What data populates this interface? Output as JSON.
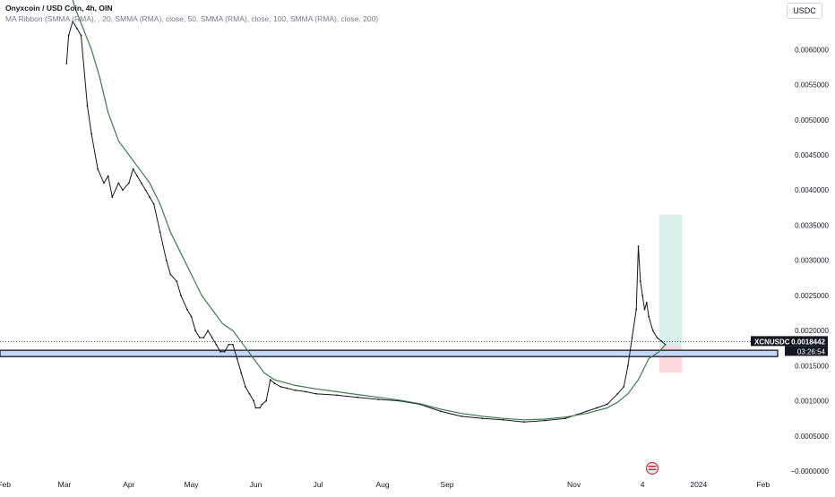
{
  "legend": {
    "title": "Onyxcoin / USD Coin, 4h, ",
    "exchange_suffix": "OIN",
    "ribbon": "MA Ribbon (SMMA (RMA),   , 20, SMMA (RMA), close, 50, SMMA (RMA), close, 100, SMMA (RMA), close, 200)"
  },
  "currency_button": "USDC",
  "symbol_tag": {
    "name": "XCNUSDC",
    "price": "0.0018442",
    "countdown": "03:26:54"
  },
  "colors": {
    "candle": "#131722",
    "ma_line": "#3d7a4e",
    "zone_fill": "#c5d7fc",
    "profit_box": "#d8efea",
    "loss_box": "#fbd9dc",
    "price_tag": "#131722"
  },
  "chart_data": {
    "type": "line",
    "title": "Onyxcoin / USD Coin, 4h",
    "y_ticks": [
      "0.0060000",
      "0.0055000",
      "0.0050000",
      "0.0045000",
      "0.0040000",
      "0.0035000",
      "0.0030000",
      "0.0025000",
      "0.0020000",
      "0.0015000",
      "0.0010000",
      "0.0005000",
      "−0.0000000"
    ],
    "y_tick_values": [
      0.006,
      0.0055,
      0.005,
      0.0045,
      0.004,
      0.0035,
      0.003,
      0.0025,
      0.002,
      0.0015,
      0.001,
      0.0005,
      0.0
    ],
    "ylim": [
      -5e-05,
      0.00645
    ],
    "x_ticks": [
      "Feb",
      "Mar",
      "Apr",
      "May",
      "Jun",
      "Jul",
      "Aug",
      "Sep",
      "Nov",
      "4",
      "2024",
      "Feb"
    ],
    "x_tick_days": [
      0,
      29,
      60,
      90,
      121,
      151,
      182,
      213,
      274,
      307,
      334,
      365
    ],
    "xlim": [
      -2,
      372
    ],
    "series": [
      {
        "name": "XCNUSDC",
        "x": [
          30,
          31,
          33,
          35,
          37,
          40,
          42,
          45,
          48,
          50,
          52,
          55,
          57,
          60,
          62,
          64,
          66,
          68,
          70,
          72,
          75,
          78,
          80,
          83,
          85,
          88,
          90,
          92,
          94,
          96,
          98,
          100,
          102,
          104,
          106,
          108,
          110,
          112,
          114,
          116,
          118,
          120,
          121,
          123,
          124,
          126,
          128,
          130,
          133,
          136,
          140,
          145,
          150,
          160,
          170,
          180,
          190,
          200,
          210,
          220,
          230,
          240,
          250,
          260,
          270,
          275,
          280,
          285,
          290,
          295,
          298,
          300,
          302,
          304,
          305,
          306,
          307,
          308,
          309,
          310,
          312,
          314,
          316,
          318
        ],
        "y": [
          0.0058,
          0.0062,
          0.0064,
          0.0063,
          0.0062,
          0.0052,
          0.0048,
          0.0043,
          0.0041,
          0.0042,
          0.0039,
          0.0041,
          0.004,
          0.0041,
          0.0043,
          0.0042,
          0.0041,
          0.004,
          0.0039,
          0.0038,
          0.0034,
          0.003,
          0.0028,
          0.0027,
          0.0025,
          0.0023,
          0.0022,
          0.002,
          0.0019,
          0.0019,
          0.002,
          0.0019,
          0.0018,
          0.0017,
          0.0017,
          0.0018,
          0.0018,
          0.0016,
          0.0014,
          0.0012,
          0.0011,
          0.001,
          0.0009,
          0.0009,
          0.00095,
          0.001,
          0.0013,
          0.00125,
          0.0012,
          0.00118,
          0.00115,
          0.00113,
          0.0011,
          0.00108,
          0.00105,
          0.00102,
          0.001,
          0.00095,
          0.00085,
          0.00078,
          0.00075,
          0.00073,
          0.0007,
          0.00072,
          0.00075,
          0.0008,
          0.00085,
          0.0009,
          0.00095,
          0.0011,
          0.0012,
          0.0015,
          0.0019,
          0.0023,
          0.0032,
          0.0027,
          0.0025,
          0.0023,
          0.0024,
          0.0022,
          0.002,
          0.0019,
          0.00185,
          0.0018
        ]
      },
      {
        "name": "SMMA (RMA) 20",
        "x": [
          30,
          34,
          38,
          42,
          46,
          50,
          55,
          60,
          65,
          70,
          75,
          80,
          85,
          90,
          95,
          100,
          105,
          110,
          115,
          120,
          125,
          130,
          140,
          150,
          160,
          170,
          180,
          190,
          200,
          210,
          220,
          230,
          240,
          250,
          260,
          270,
          280,
          290,
          295,
          300,
          305,
          310,
          315,
          318
        ],
        "y": [
          0.007,
          0.0066,
          0.0063,
          0.006,
          0.0056,
          0.0051,
          0.0047,
          0.0045,
          0.0043,
          0.0041,
          0.0038,
          0.0034,
          0.0031,
          0.0028,
          0.0025,
          0.0023,
          0.0021,
          0.002,
          0.0018,
          0.0016,
          0.0014,
          0.0013,
          0.00122,
          0.00117,
          0.00113,
          0.00109,
          0.00105,
          0.00101,
          0.00096,
          0.00088,
          0.00082,
          0.00078,
          0.00075,
          0.00073,
          0.00074,
          0.00077,
          0.00082,
          0.0009,
          0.00098,
          0.0011,
          0.0013,
          0.0016,
          0.0017,
          0.0018
        ]
      }
    ],
    "support_zone": [
      0.00163,
      0.00172
    ],
    "position": {
      "entry": 0.00178,
      "target": 0.00365,
      "stop": 0.0014,
      "x_start": 315,
      "x_end": 326
    },
    "grid": false,
    "legend": "top-left"
  }
}
